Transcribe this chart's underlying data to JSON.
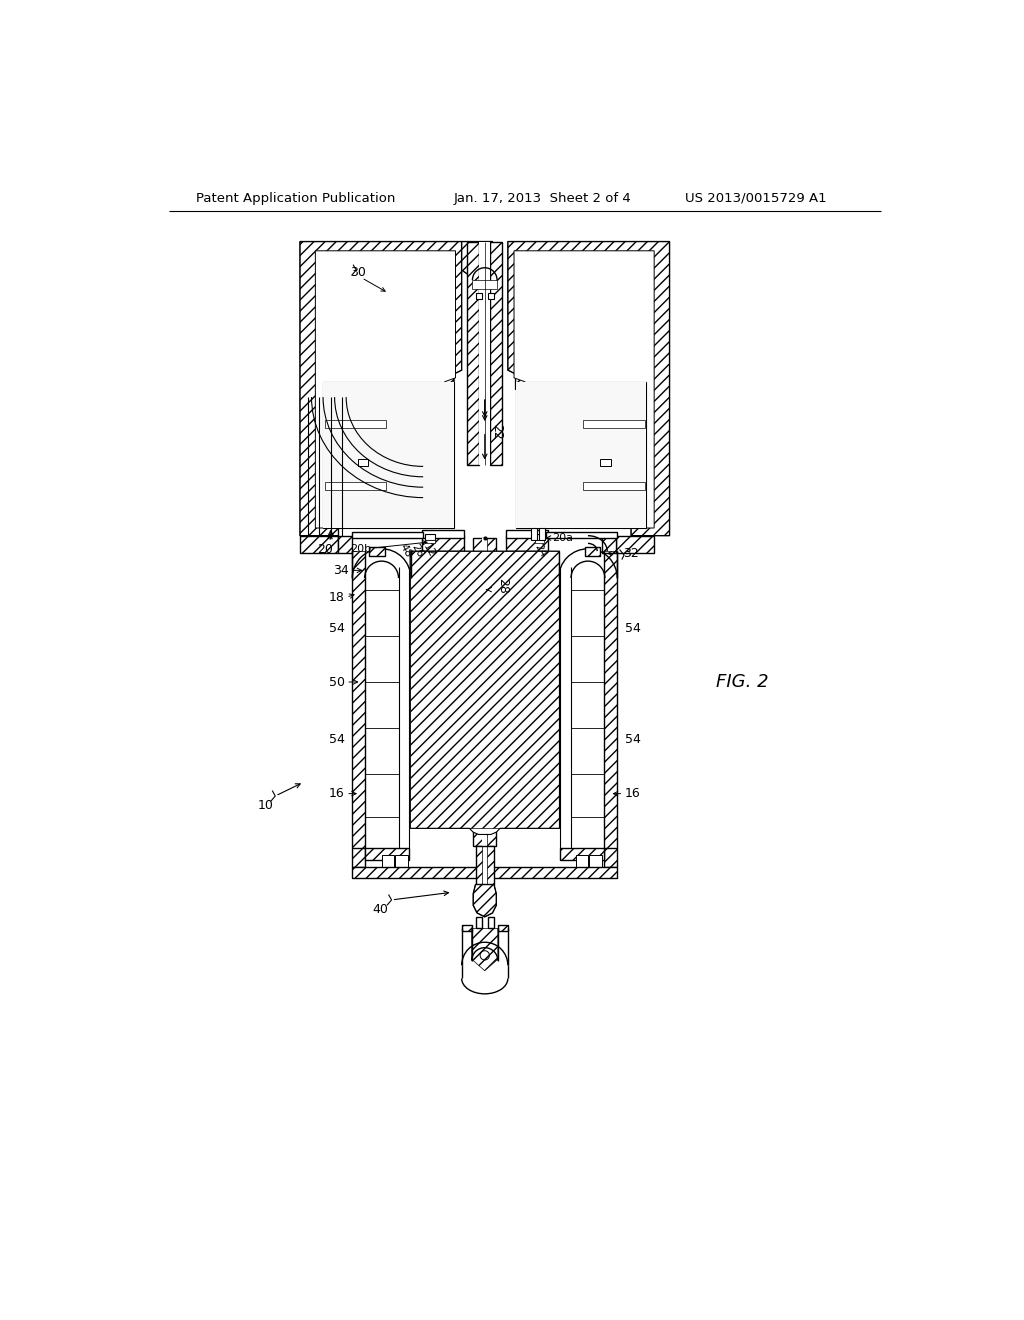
{
  "background_color": "#ffffff",
  "header_left": "Patent Application Publication",
  "header_center": "Jan. 17, 2013  Sheet 2 of 4",
  "header_right": "US 2013/0015729 A1",
  "fig_label": "FIG. 2",
  "line_color": "#000000",
  "line_width": 1.0
}
